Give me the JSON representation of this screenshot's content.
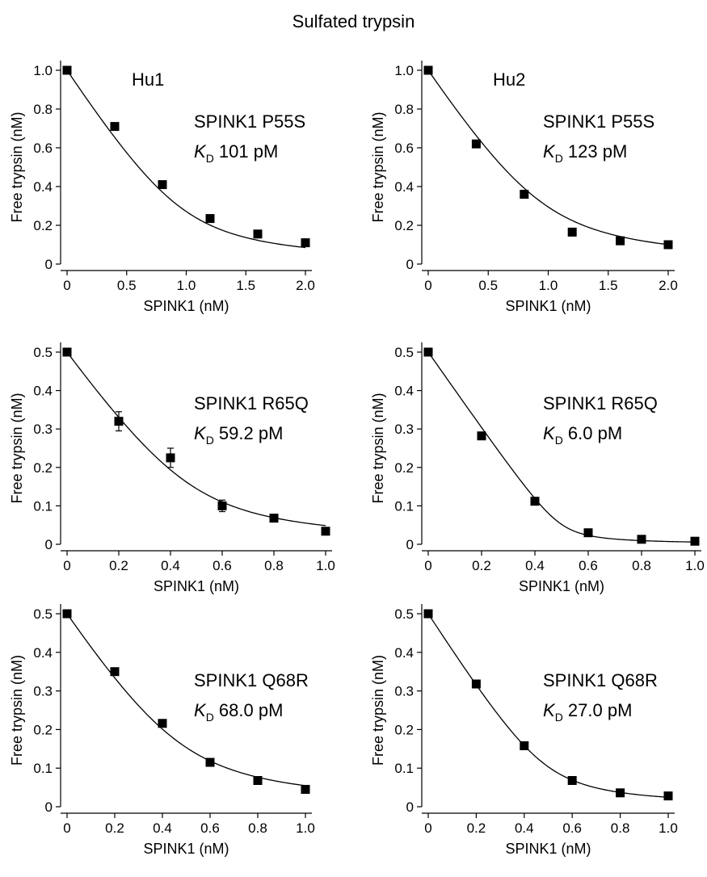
{
  "figure": {
    "title": "Sulfated trypsin"
  },
  "chart_data": [
    {
      "type": "scatter",
      "panel_label": "Hu1",
      "annotation_line1": "SPINK1 P55S",
      "kd_symbol": "K",
      "kd_subscript": "D",
      "kd_value": "101 pM",
      "xlabel": "SPINK1 (nM)",
      "ylabel": "Free trypsin (nM)",
      "xlim": [
        0,
        2.0
      ],
      "ylim": [
        0,
        1.0
      ],
      "xticks": [
        "0",
        "0.5",
        "1.0",
        "1.5",
        "2.0"
      ],
      "xtick_values": [
        0,
        0.5,
        1.0,
        1.5,
        2.0
      ],
      "yticks": [
        "0",
        "0.2",
        "0.4",
        "0.6",
        "0.8",
        "1.0"
      ],
      "ytick_values": [
        0,
        0.2,
        0.4,
        0.6,
        0.8,
        1.0
      ],
      "x": [
        0,
        0.4,
        0.8,
        1.2,
        1.6,
        2.0
      ],
      "y": [
        1.0,
        0.71,
        0.41,
        0.235,
        0.155,
        0.11
      ],
      "errors": [
        0,
        0,
        0,
        0,
        0,
        0
      ],
      "fit_total_trypsin": 1.0,
      "fit_kd": 0.101
    },
    {
      "type": "scatter",
      "panel_label": "Hu2",
      "annotation_line1": "SPINK1 P55S",
      "kd_symbol": "K",
      "kd_subscript": "D",
      "kd_value": "123 pM",
      "xlabel": "SPINK1 (nM)",
      "ylabel": "Free trypsin (nM)",
      "xlim": [
        0,
        2.0
      ],
      "ylim": [
        0,
        1.0
      ],
      "xticks": [
        "0",
        "0.5",
        "1.0",
        "1.5",
        "2.0"
      ],
      "xtick_values": [
        0,
        0.5,
        1.0,
        1.5,
        2.0
      ],
      "yticks": [
        "0",
        "0.2",
        "0.4",
        "0.6",
        "0.8",
        "1.0"
      ],
      "ytick_values": [
        0,
        0.2,
        0.4,
        0.6,
        0.8,
        1.0
      ],
      "x": [
        0,
        0.4,
        0.8,
        1.2,
        1.6,
        2.0
      ],
      "y": [
        1.0,
        0.62,
        0.36,
        0.165,
        0.12,
        0.1
      ],
      "errors": [
        0,
        0,
        0.02,
        0.02,
        0,
        0
      ],
      "fit_total_trypsin": 1.0,
      "fit_kd": 0.123
    },
    {
      "type": "scatter",
      "panel_label": "",
      "annotation_line1": "SPINK1 R65Q",
      "kd_symbol": "K",
      "kd_subscript": "D",
      "kd_value": "59.2 pM",
      "xlabel": "SPINK1 (nM)",
      "ylabel": "Free trypsin (nM)",
      "xlim": [
        0,
        1.0
      ],
      "ylim": [
        0,
        0.5
      ],
      "xticks": [
        "0",
        "0.2",
        "0.4",
        "0.6",
        "0.8",
        "1.0"
      ],
      "xtick_values": [
        0,
        0.2,
        0.4,
        0.6,
        0.8,
        1.0
      ],
      "yticks": [
        "0",
        "0.1",
        "0.2",
        "0.3",
        "0.4",
        "0.5"
      ],
      "ytick_values": [
        0,
        0.1,
        0.2,
        0.3,
        0.4,
        0.5
      ],
      "x": [
        0,
        0.2,
        0.4,
        0.6,
        0.8,
        1.0
      ],
      "y": [
        0.5,
        0.32,
        0.225,
        0.1,
        0.068,
        0.034
      ],
      "errors": [
        0,
        0.025,
        0.025,
        0.015,
        0,
        0
      ],
      "fit_total_trypsin": 0.5,
      "fit_kd": 0.0592
    },
    {
      "type": "scatter",
      "panel_label": "",
      "annotation_line1": "SPINK1 R65Q",
      "kd_symbol": "K",
      "kd_subscript": "D",
      "kd_value": "6.0 pM",
      "xlabel": "SPINK1 (nM)",
      "ylabel": "Free trypsin (nM)",
      "xlim": [
        0,
        1.0
      ],
      "ylim": [
        0,
        0.5
      ],
      "xticks": [
        "0",
        "0.2",
        "0.4",
        "0.6",
        "0.8",
        "1.0"
      ],
      "xtick_values": [
        0,
        0.2,
        0.4,
        0.6,
        0.8,
        1.0
      ],
      "yticks": [
        "0",
        "0.1",
        "0.2",
        "0.3",
        "0.4",
        "0.5"
      ],
      "ytick_values": [
        0,
        0.1,
        0.2,
        0.3,
        0.4,
        0.5
      ],
      "x": [
        0,
        0.2,
        0.4,
        0.6,
        0.8,
        1.0
      ],
      "y": [
        0.5,
        0.282,
        0.112,
        0.03,
        0.013,
        0.008
      ],
      "errors": [
        0,
        0,
        0,
        0,
        0,
        0
      ],
      "fit_total_trypsin": 0.5,
      "fit_kd": 0.006
    },
    {
      "type": "scatter",
      "panel_label": "",
      "annotation_line1": "SPINK1 Q68R",
      "kd_symbol": "K",
      "kd_subscript": "D",
      "kd_value": "68.0 pM",
      "xlabel": "SPINK1 (nM)",
      "ylabel": "Free trypsin (nM)",
      "xlim": [
        0,
        1.0
      ],
      "ylim": [
        0,
        0.5
      ],
      "xticks": [
        "0",
        "0.2",
        "0.4",
        "0.6",
        "0.8",
        "1.0"
      ],
      "xtick_values": [
        0,
        0.2,
        0.4,
        0.6,
        0.8,
        1.0
      ],
      "yticks": [
        "0",
        "0.1",
        "0.2",
        "0.3",
        "0.4",
        "0.5"
      ],
      "ytick_values": [
        0,
        0.1,
        0.2,
        0.3,
        0.4,
        0.5
      ],
      "x": [
        0,
        0.2,
        0.4,
        0.6,
        0.8,
        1.0
      ],
      "y": [
        0.5,
        0.35,
        0.216,
        0.115,
        0.068,
        0.045
      ],
      "errors": [
        0,
        0,
        0,
        0,
        0,
        0
      ],
      "fit_total_trypsin": 0.5,
      "fit_kd": 0.068
    },
    {
      "type": "scatter",
      "panel_label": "",
      "annotation_line1": "SPINK1 Q68R",
      "kd_symbol": "K",
      "kd_subscript": "D",
      "kd_value": "27.0 pM",
      "xlabel": "SPINK1 (nM)",
      "ylabel": "Free trypsin (nM)",
      "xlim": [
        0,
        1.0
      ],
      "ylim": [
        0,
        0.5
      ],
      "xticks": [
        "0",
        "0.2",
        "0.4",
        "0.6",
        "0.8",
        "1.0"
      ],
      "xtick_values": [
        0,
        0.2,
        0.4,
        0.6,
        0.8,
        1.0
      ],
      "yticks": [
        "0",
        "0.1",
        "0.2",
        "0.3",
        "0.4",
        "0.5"
      ],
      "ytick_values": [
        0,
        0.1,
        0.2,
        0.3,
        0.4,
        0.5
      ],
      "x": [
        0,
        0.2,
        0.4,
        0.6,
        0.8,
        1.0
      ],
      "y": [
        0.5,
        0.318,
        0.158,
        0.068,
        0.036,
        0.028
      ],
      "errors": [
        0,
        0,
        0,
        0,
        0,
        0
      ],
      "fit_total_trypsin": 0.5,
      "fit_kd": 0.027
    }
  ]
}
